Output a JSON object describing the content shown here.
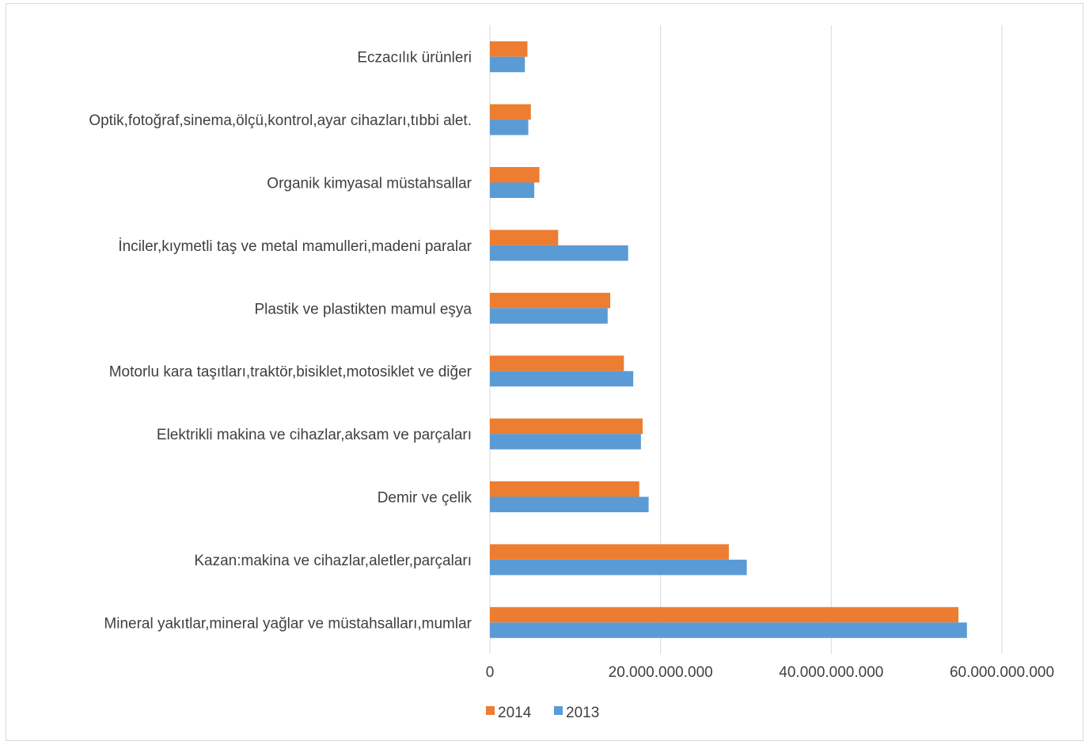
{
  "chart_data": {
    "type": "bar",
    "orientation": "horizontal",
    "title": "",
    "xlabel": "",
    "ylabel": "",
    "xlim": [
      0,
      60000000000
    ],
    "x_ticks": [
      {
        "value": 0,
        "label": "0"
      },
      {
        "value": 20000000000,
        "label": "20.000.000.000"
      },
      {
        "value": 40000000000,
        "label": "40.000.000.000"
      },
      {
        "value": 60000000000,
        "label": "60.000.000.000"
      }
    ],
    "grid": "vertical",
    "legend_position": "bottom",
    "categories": [
      "Mineral yakıtlar,mineral yağlar ve müstahsalları,mumlar",
      "Kazan:makina ve cihazlar,aletler,parçaları",
      "Demir ve çelik",
      "Elektrikli makina ve cihazlar,aksam ve parçaları",
      "Motorlu kara taşıtları,traktör,bisiklet,motosiklet ve diğer",
      "Plastik ve plastikten mamul eşya",
      "İnciler,kıymetli taş ve metal mamulleri,madeni paralar",
      "Organik kimyasal müstahsallar",
      "Optik,fotoğraf,sinema,ölçü,kontrol,ayar cihazları,tıbbi alet.",
      "Eczacılık ürünleri"
    ],
    "series": [
      {
        "name": "2014",
        "color": "#ED7D31",
        "values": [
          54900000000,
          28000000000,
          17500000000,
          17900000000,
          15700000000,
          14100000000,
          8000000000,
          5800000000,
          4800000000,
          4400000000
        ]
      },
      {
        "name": "2013",
        "color": "#5B9BD5",
        "values": [
          55900000000,
          30100000000,
          18600000000,
          17700000000,
          16800000000,
          13800000000,
          16200000000,
          5200000000,
          4500000000,
          4100000000
        ]
      }
    ]
  }
}
